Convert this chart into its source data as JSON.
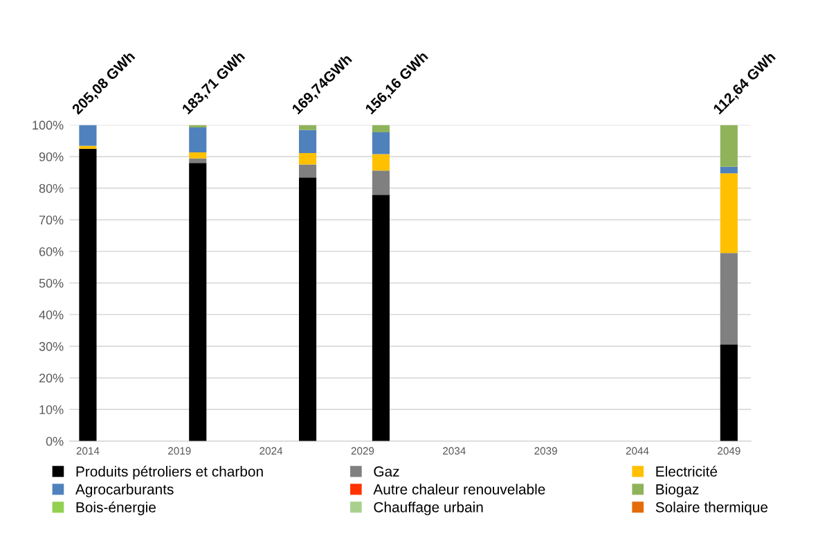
{
  "chart_data": {
    "type": "bar",
    "stacked": true,
    "x": [
      2014,
      2020,
      2026,
      2030,
      2049
    ],
    "xlim": [
      2013,
      2050.2
    ],
    "xticks": [
      2014,
      2019,
      2024,
      2029,
      2034,
      2039,
      2044,
      2049
    ],
    "ylim": [
      0,
      100
    ],
    "yticks": [
      {
        "value": 0,
        "label": "0%"
      },
      {
        "value": 10,
        "label": "10%"
      },
      {
        "value": 20,
        "label": "20%"
      },
      {
        "value": 30,
        "label": "30%"
      },
      {
        "value": 40,
        "label": "40%"
      },
      {
        "value": 50,
        "label": "50%"
      },
      {
        "value": 60,
        "label": "60%"
      },
      {
        "value": 70,
        "label": "70%"
      },
      {
        "value": 80,
        "label": "80%"
      },
      {
        "value": 90,
        "label": "90%"
      },
      {
        "value": 100,
        "label": "100%"
      }
    ],
    "series": [
      {
        "name": "Produits pétroliers et charbon",
        "color": "#000000",
        "values": [
          92.5,
          88.0,
          83.4,
          77.9,
          30.6
        ]
      },
      {
        "name": "Gaz",
        "color": "#808080",
        "values": [
          0,
          1.4,
          4.1,
          7.7,
          28.9
        ]
      },
      {
        "name": "Electricité",
        "color": "#ffc000",
        "values": [
          0.9,
          1.9,
          3.6,
          5.2,
          25.2
        ]
      },
      {
        "name": "Agrocarburants",
        "color": "#4f81bd",
        "values": [
          6.6,
          7.9,
          7.3,
          6.9,
          2.1
        ]
      },
      {
        "name": "Autre chaleur renouvelable",
        "color": "#ff3300",
        "values": [
          0,
          0,
          0,
          0,
          0
        ]
      },
      {
        "name": "Biogaz",
        "color": "#8fb35a",
        "values": [
          0,
          0.8,
          1.6,
          2.3,
          13.2
        ]
      },
      {
        "name": "Bois-énergie",
        "color": "#92d050",
        "values": [
          0,
          0,
          0,
          0,
          0
        ]
      },
      {
        "name": "Chauffage urbain",
        "color": "#a9d18e",
        "values": [
          0,
          0,
          0,
          0,
          0
        ]
      },
      {
        "name": "Solaire thermique",
        "color": "#e36c09",
        "values": [
          0,
          0,
          0,
          0,
          0
        ]
      }
    ],
    "annotations": [
      {
        "text": "205,08 GWh",
        "x": 2014,
        "y": 100
      },
      {
        "text": "183,71 GWh",
        "x": 2020,
        "y": 100
      },
      {
        "text": "169,74GWh",
        "x": 2026,
        "y": 100
      },
      {
        "text": "156,16 GWh",
        "x": 2030,
        "y": 100
      },
      {
        "text": "112,64 GWh",
        "x": 2049,
        "y": 100
      }
    ],
    "grid": "y",
    "legend": "bottom"
  }
}
